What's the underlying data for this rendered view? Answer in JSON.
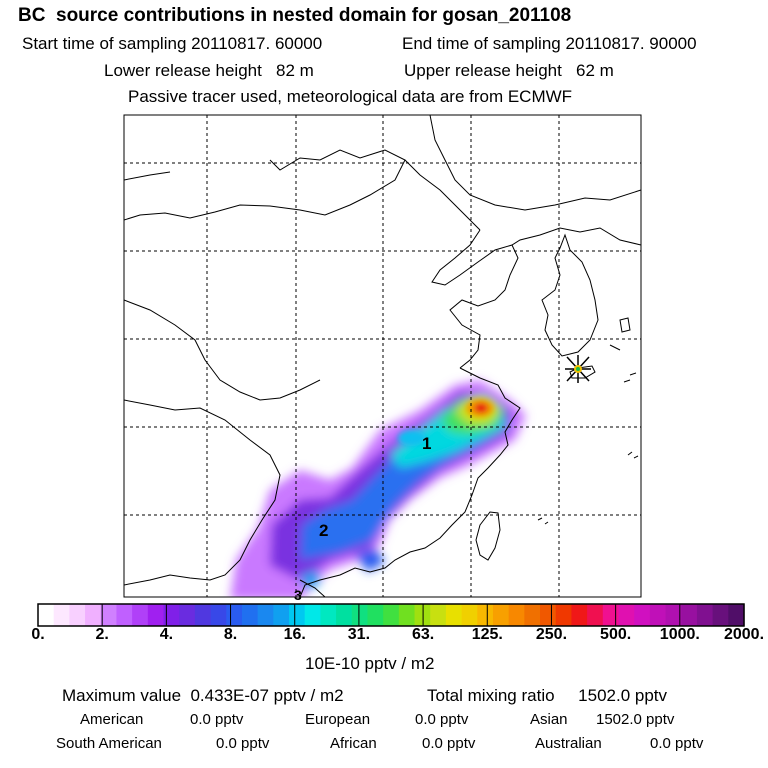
{
  "header": {
    "title": "BC  source contributions in nested domain for gosan_201108",
    "start_time": "Start time of sampling 20110817. 60000",
    "end_time": "End time of sampling 20110817. 90000",
    "lower_height": "Lower release height   82 m",
    "upper_height": "Upper release height   62 m",
    "note": "Passive tracer used, meteorological data are from ECMWF"
  },
  "map": {
    "labels": [
      "1",
      "2",
      "3"
    ],
    "receptor": "gosan",
    "plume_colors": [
      "#b020f0",
      "#6a2ce0",
      "#2a5cf0",
      "#1a9cf0",
      "#00d8e0",
      "#20e070",
      "#a8e010",
      "#f0d000",
      "#f08000",
      "#e81010"
    ]
  },
  "colorbar": {
    "ticks": [
      "0.",
      "2.",
      "4.",
      "8.",
      "16.",
      "31.",
      "63.",
      "125.",
      "250.",
      "500.",
      "1000.",
      "2000."
    ],
    "colors": [
      "#ffffff",
      "#fde8ff",
      "#f8d0ff",
      "#f0b0ff",
      "#d080ff",
      "#c060ff",
      "#b040f8",
      "#a020f0",
      "#8020e8",
      "#6a2ce0",
      "#5038e0",
      "#3848e8",
      "#2a5cf0",
      "#2070f0",
      "#1a88f0",
      "#10a0f0",
      "#00c8f0",
      "#00e8e8",
      "#00e8c0",
      "#00e0a0",
      "#10e080",
      "#20e060",
      "#40e040",
      "#70e020",
      "#a0e010",
      "#c8e010",
      "#e8e000",
      "#f0d000",
      "#f8b800",
      "#f8a000",
      "#f88800",
      "#f07000",
      "#f05800",
      "#f03800",
      "#f01818",
      "#f01050",
      "#f01090",
      "#e010b0",
      "#d010c0",
      "#c010b8",
      "#b010b0",
      "#9810a0",
      "#801090",
      "#68107c",
      "#500e68"
    ],
    "units": "10E-10 pptv / m2"
  },
  "stats": {
    "max_value": "Maximum value  0.433E-07 pptv / m2",
    "total": "Total mixing ratio     1502.0 pptv",
    "american_label": "American",
    "american_value": "0.0 pptv",
    "european_label": "European",
    "european_value": "0.0 pptv",
    "asian_label": "Asian",
    "asian_value": "1502.0 pptv",
    "south_american_label": "South American",
    "south_american_value": "0.0 pptv",
    "african_label": "African",
    "african_value": "0.0 pptv",
    "australian_label": "Australian",
    "australian_value": "0.0 pptv"
  }
}
